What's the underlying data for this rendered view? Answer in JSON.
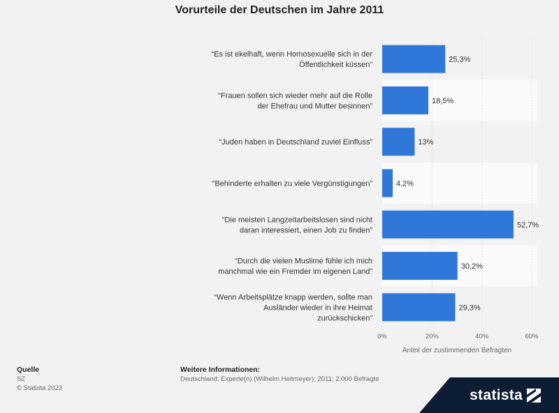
{
  "chart_data": {
    "type": "bar",
    "orientation": "horizontal",
    "title": "Vorurteile der Deutschen im Jahre 2011",
    "categories": [
      "“Es ist ekelhaft, wenn Homosexuelle sich in der|Öffentlichkeit küssen”",
      "“Frauen sollen sich wieder mehr auf die Rolle|der Ehefrau und Mutter besinnen”",
      "“Juden haben in Deutschland zuviel Einfluss”",
      "“Behinderte erhalten zu viele Vergünstigungen”",
      "“Die meisten Langzeitarbeitslosen sind nicht|daran interessiert, einen Job zu finden”",
      "“Durch die vielen Muslime fühle ich mich|manchmal wie ein Fremder im eigenen Land”",
      "“Wenn Arbeitsplätze knapp werden, sollte man|Ausländer wieder in ihre Heimat|zurückschicken”"
    ],
    "values": [
      25.3,
      18.5,
      13,
      4.2,
      52.7,
      30.2,
      29.3
    ],
    "data_labels": [
      "25,3%",
      "18,5%",
      "13%",
      "4,2%",
      "52,7%",
      "30,2%",
      "29,3%"
    ],
    "xlim": [
      0,
      60
    ],
    "xticks": [
      0,
      20,
      40,
      60
    ],
    "xtick_labels": [
      "0%",
      "20%",
      "40%",
      "60%"
    ],
    "xlabel": "Anteil der zustimmenden Befragten",
    "ylabel": "",
    "bar_color": "#2f77d8",
    "grid": true,
    "legend": false
  },
  "footer": {
    "source_label": "Quelle",
    "source": "SZ",
    "copyright": "© Statista 2023",
    "info_label": "Weitere Informationen:",
    "info": "Deutschland; Experte(n) (Wilhelm Heitmeyer); 2011; 2.000 Befragte"
  },
  "brand": {
    "logo": "statista",
    "icon": "statista-logo-icon",
    "bg_color": "#0d1d33"
  }
}
